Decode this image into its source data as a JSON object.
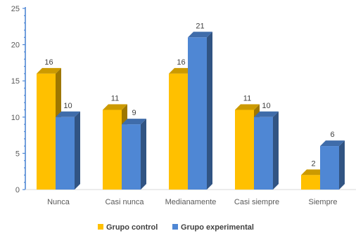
{
  "chart_data": {
    "type": "bar",
    "categories": [
      "Nunca",
      "Casi nunca",
      "Medianamente",
      "Casi siempre",
      "Siempre"
    ],
    "series": [
      {
        "name": "Grupo control",
        "values": [
          16,
          11,
          16,
          11,
          2
        ],
        "color": "#FFC000"
      },
      {
        "name": "Grupo experimental",
        "values": [
          10,
          9,
          21,
          10,
          6
        ],
        "color": "#4F87D4"
      }
    ],
    "title": "",
    "xlabel": "",
    "ylabel": "",
    "ylim": [
      0,
      25
    ],
    "yticks": [
      0,
      5,
      10,
      15,
      20,
      25
    ],
    "grid": false,
    "style": "3d-bar",
    "legend_position": "bottom",
    "axis_color": "#4F87D4"
  }
}
